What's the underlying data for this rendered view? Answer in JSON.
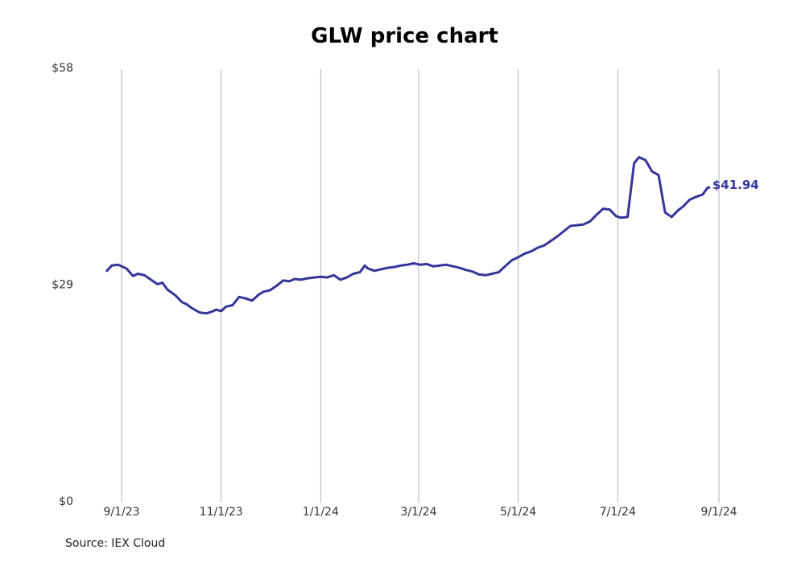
{
  "source": "Source: IEX Cloud",
  "colors": {
    "line": "#35359a",
    "grid": "#b3b3b3"
  },
  "chart_data": {
    "type": "line",
    "title": "GLW price chart",
    "xlabel": "",
    "ylabel": "",
    "ylim": [
      0,
      58
    ],
    "yticks": [
      {
        "value": 0,
        "label": "$0"
      },
      {
        "value": 29,
        "label": "$29"
      },
      {
        "value": 58,
        "label": "$58"
      }
    ],
    "xticks": [
      {
        "value": "2023-09-01",
        "label": "9/1/23"
      },
      {
        "value": "2023-11-01",
        "label": "11/1/23"
      },
      {
        "value": "2024-01-01",
        "label": "1/1/24"
      },
      {
        "value": "2024-03-01",
        "label": "3/1/24"
      },
      {
        "value": "2024-05-01",
        "label": "5/1/24"
      },
      {
        "value": "2024-07-01",
        "label": "7/1/24"
      },
      {
        "value": "2024-09-01",
        "label": "9/1/24"
      }
    ],
    "grid": "vertical",
    "end_label": "$41.94",
    "series": [
      {
        "x": [
          "2023-08-23",
          "2023-08-26",
          "2023-08-30",
          "2023-09-04",
          "2023-09-08",
          "2023-09-11",
          "2023-09-15",
          "2023-09-19",
          "2023-09-23",
          "2023-09-26",
          "2023-09-29",
          "2023-10-04",
          "2023-10-08",
          "2023-10-11",
          "2023-10-14",
          "2023-10-19",
          "2023-10-23",
          "2023-10-26",
          "2023-10-29",
          "2023-11-01",
          "2023-11-04",
          "2023-11-08",
          "2023-11-12",
          "2023-11-16",
          "2023-11-20",
          "2023-11-24",
          "2023-11-27",
          "2023-12-01",
          "2023-12-05",
          "2023-12-09",
          "2023-12-13",
          "2023-12-16",
          "2023-12-20",
          "2023-12-24",
          "2023-12-28",
          "2024-01-01",
          "2024-01-05",
          "2024-01-09",
          "2024-01-13",
          "2024-01-17",
          "2024-01-21",
          "2024-01-25",
          "2024-01-28",
          "2024-01-30",
          "2024-02-03",
          "2024-02-07",
          "2024-02-11",
          "2024-02-15",
          "2024-02-19",
          "2024-02-23",
          "2024-02-27",
          "2024-03-02",
          "2024-03-06",
          "2024-03-10",
          "2024-03-14",
          "2024-03-18",
          "2024-03-22",
          "2024-03-26",
          "2024-03-30",
          "2024-04-03",
          "2024-04-07",
          "2024-04-11",
          "2024-04-15",
          "2024-04-19",
          "2024-04-23",
          "2024-04-27",
          "2024-05-01",
          "2024-05-05",
          "2024-05-09",
          "2024-05-13",
          "2024-05-17",
          "2024-05-21",
          "2024-05-25",
          "2024-05-29",
          "2024-06-02",
          "2024-06-06",
          "2024-06-10",
          "2024-06-14",
          "2024-06-18",
          "2024-06-22",
          "2024-06-26",
          "2024-06-30",
          "2024-07-03",
          "2024-07-07",
          "2024-07-11",
          "2024-07-14",
          "2024-07-18",
          "2024-07-22",
          "2024-07-26",
          "2024-07-30",
          "2024-08-03",
          "2024-08-07",
          "2024-08-10",
          "2024-08-14",
          "2024-08-18",
          "2024-08-22",
          "2024-08-25",
          "2024-08-26"
        ],
        "y": [
          30.8,
          31.5,
          31.6,
          31.1,
          30.1,
          30.4,
          30.2,
          29.6,
          29.0,
          29.2,
          28.3,
          27.5,
          26.6,
          26.3,
          25.8,
          25.2,
          25.1,
          25.3,
          25.6,
          25.4,
          26.0,
          26.2,
          27.3,
          27.1,
          26.8,
          27.6,
          28.0,
          28.2,
          28.8,
          29.5,
          29.4,
          29.7,
          29.6,
          29.8,
          29.9,
          30.0,
          29.9,
          30.2,
          29.6,
          29.9,
          30.4,
          30.6,
          31.5,
          31.1,
          30.8,
          31.0,
          31.2,
          31.3,
          31.5,
          31.6,
          31.8,
          31.6,
          31.7,
          31.4,
          31.5,
          31.6,
          31.4,
          31.2,
          30.9,
          30.7,
          30.3,
          30.2,
          30.4,
          30.6,
          31.4,
          32.2,
          32.6,
          33.1,
          33.4,
          33.9,
          34.2,
          34.8,
          35.4,
          36.1,
          36.8,
          36.9,
          37.0,
          37.4,
          38.3,
          39.1,
          39.0,
          38.1,
          37.9,
          38.0,
          45.2,
          46.0,
          45.6,
          44.1,
          43.6,
          38.6,
          38.0,
          38.9,
          39.4,
          40.3,
          40.7,
          41.0,
          41.9,
          41.94
        ]
      }
    ]
  }
}
